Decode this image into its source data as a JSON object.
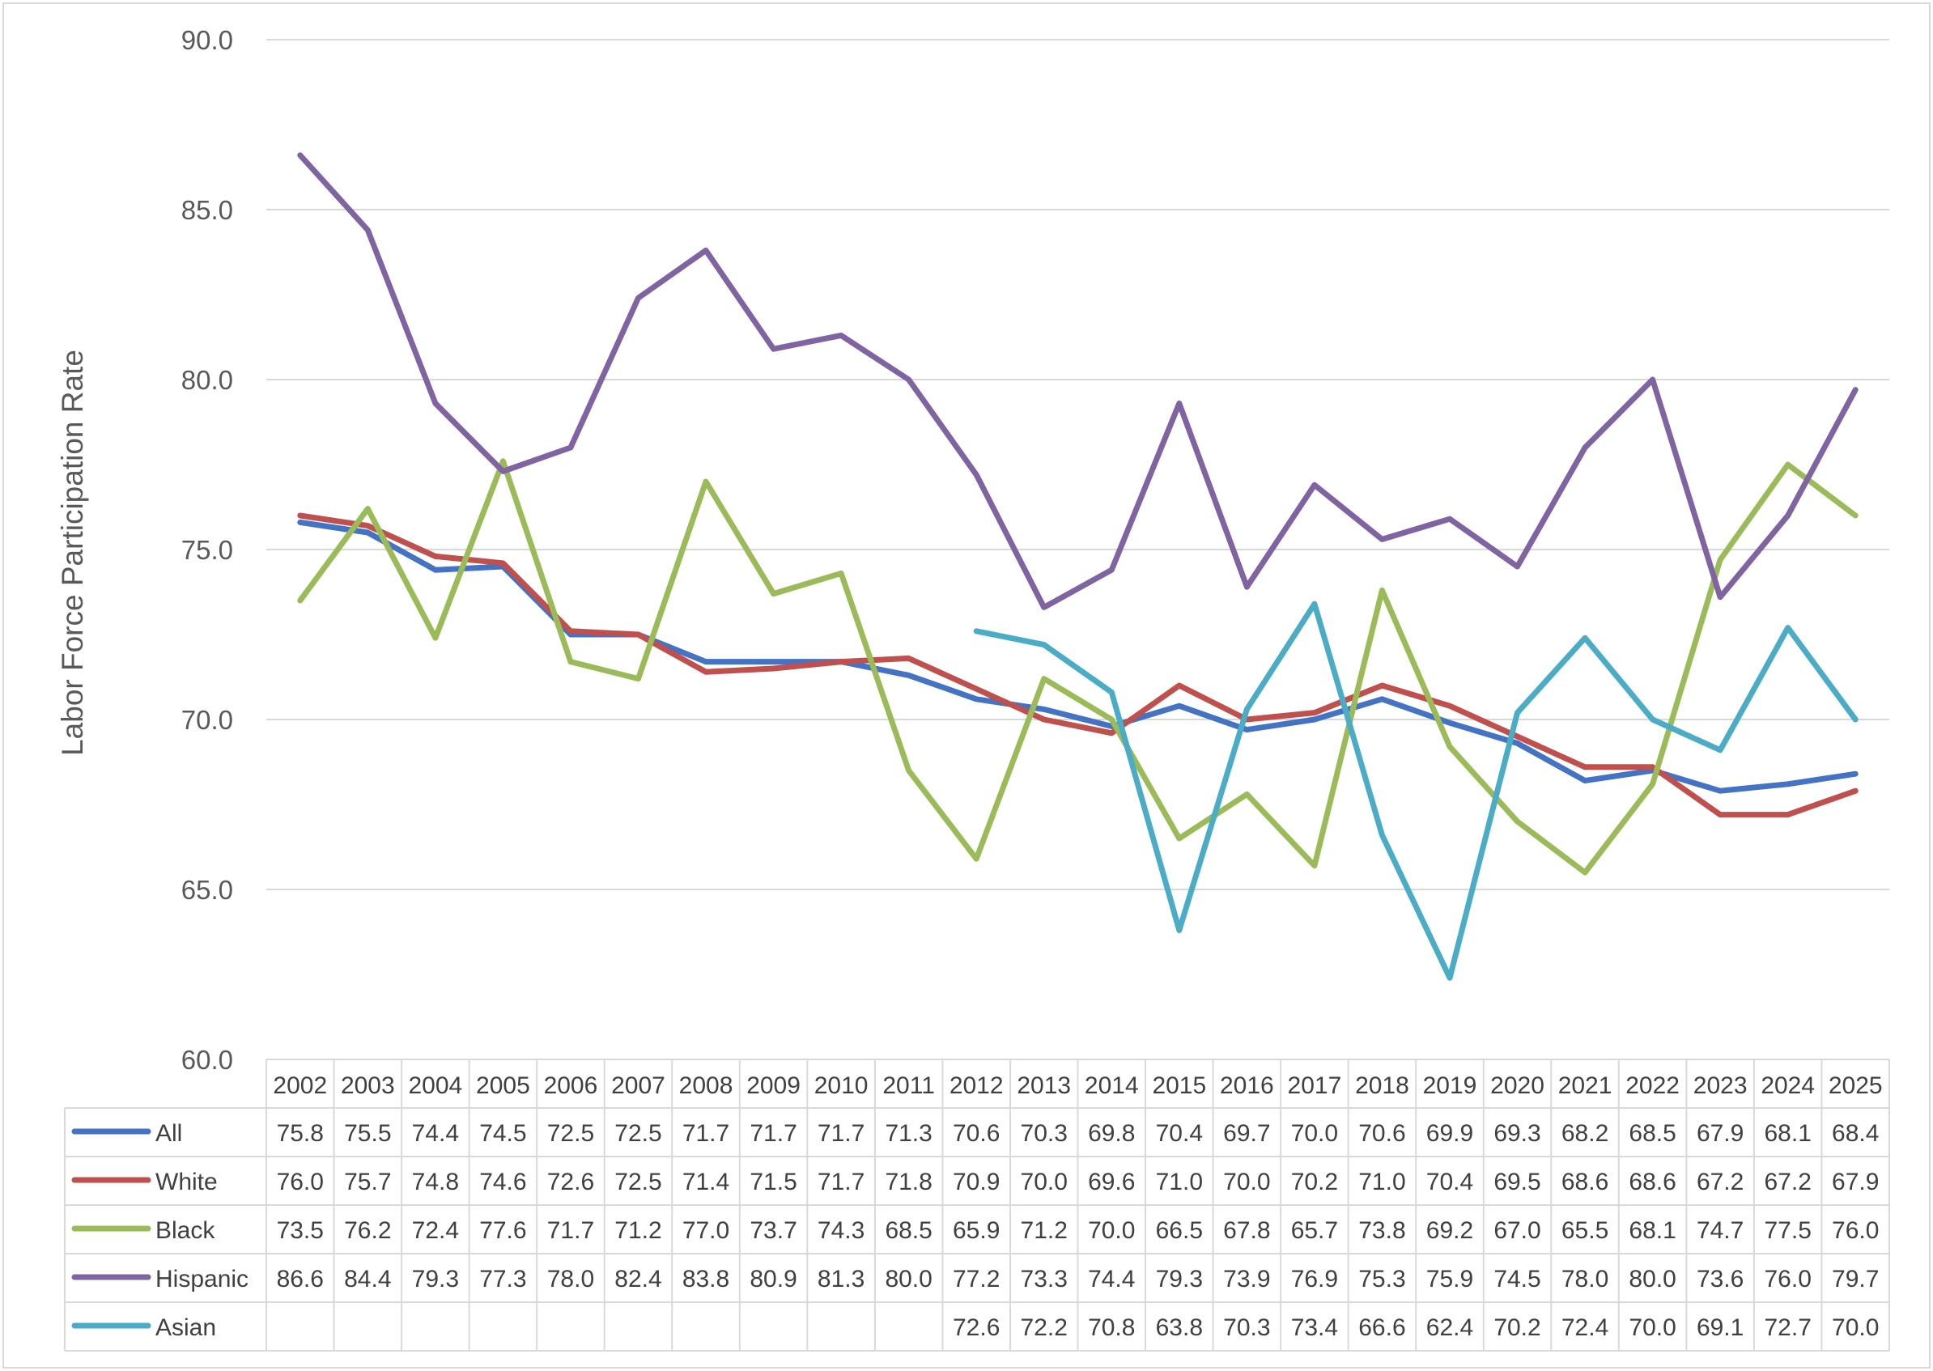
{
  "chart_data": {
    "type": "line",
    "ylabel": "Labor Force Participation Rate",
    "ylim": [
      60,
      90
    ],
    "yticks": [
      "60.0",
      "65.0",
      "70.0",
      "75.0",
      "80.0",
      "85.0",
      "90.0"
    ],
    "grid": true,
    "legend": "data-table",
    "categories": [
      "2002",
      "2003",
      "2004",
      "2005",
      "2006",
      "2007",
      "2008",
      "2009",
      "2010",
      "2011",
      "2012",
      "2013",
      "2014",
      "2015",
      "2016",
      "2017",
      "2018",
      "2019",
      "2020",
      "2021",
      "2022",
      "2023",
      "2024",
      "2025"
    ],
    "series": [
      {
        "name": "All",
        "color": "#4472c4",
        "values": [
          75.8,
          75.5,
          74.4,
          74.5,
          72.5,
          72.5,
          71.7,
          71.7,
          71.7,
          71.3,
          70.6,
          70.3,
          69.8,
          70.4,
          69.7,
          70.0,
          70.6,
          69.9,
          69.3,
          68.2,
          68.5,
          67.9,
          68.1,
          68.4
        ]
      },
      {
        "name": "White",
        "color": "#c0504d",
        "values": [
          76.0,
          75.7,
          74.8,
          74.6,
          72.6,
          72.5,
          71.4,
          71.5,
          71.7,
          71.8,
          70.9,
          70.0,
          69.6,
          71.0,
          70.0,
          70.2,
          71.0,
          70.4,
          69.5,
          68.6,
          68.6,
          67.2,
          67.2,
          67.9
        ]
      },
      {
        "name": "Black",
        "color": "#9bbb59",
        "values": [
          73.5,
          76.2,
          72.4,
          77.6,
          71.7,
          71.2,
          77.0,
          73.7,
          74.3,
          68.5,
          65.9,
          71.2,
          70.0,
          66.5,
          67.8,
          65.7,
          73.8,
          69.2,
          67.0,
          65.5,
          68.1,
          74.7,
          77.5,
          76.0
        ]
      },
      {
        "name": "Hispanic",
        "color": "#8064a2",
        "values": [
          86.6,
          84.4,
          79.3,
          77.3,
          78.0,
          82.4,
          83.8,
          80.9,
          81.3,
          80.0,
          77.2,
          73.3,
          74.4,
          79.3,
          73.9,
          76.9,
          75.3,
          75.9,
          74.5,
          78.0,
          80.0,
          73.6,
          76.0,
          79.7
        ]
      },
      {
        "name": "Asian",
        "color": "#4bacc6",
        "values": [
          null,
          null,
          null,
          null,
          null,
          null,
          null,
          null,
          null,
          null,
          72.6,
          72.2,
          70.8,
          63.8,
          70.3,
          73.4,
          66.6,
          62.4,
          70.2,
          72.4,
          70.0,
          69.1,
          72.7,
          70.0
        ]
      }
    ]
  }
}
